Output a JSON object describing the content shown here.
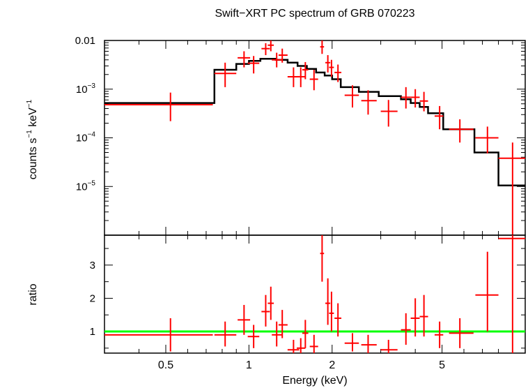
{
  "title": "Swift−XRT PC spectrum of GRB 070223",
  "colors": {
    "data": "#ff0000",
    "model": "#000000",
    "unity": "#00ff00",
    "axes": "#000000"
  },
  "chart_data": [
    {
      "type": "scatter",
      "panel": "spectrum",
      "title": "Swift−XRT PC spectrum of GRB 070223",
      "xlabel": "",
      "ylabel_main": "counts s",
      "ylabel_sup1": "−1",
      "ylabel_mid": " keV",
      "ylabel_sup2": "−1",
      "xscale": "log",
      "yscale": "log",
      "xlim": [
        0.3,
        10
      ],
      "ylim": [
        1e-06,
        0.01
      ],
      "ytick_labels": [
        {
          "value": 0.01,
          "base": "0.01",
          "exp": ""
        },
        {
          "value": 0.001,
          "base": "10",
          "exp": "−3"
        },
        {
          "value": 0.0001,
          "base": "10",
          "exp": "−4"
        },
        {
          "value": 1e-05,
          "base": "10",
          "exp": "−5"
        }
      ],
      "series": [
        {
          "kind": "data",
          "points": [
            {
              "x": 0.52,
              "xlo": 0.3,
              "xhi": 0.74,
              "y": 0.00048,
              "ylo": 0.00022,
              "yhi": 0.00085
            },
            {
              "x": 0.82,
              "xlo": 0.75,
              "xhi": 0.9,
              "y": 0.0021,
              "ylo": 0.0011,
              "yhi": 0.0035
            },
            {
              "x": 0.96,
              "xlo": 0.91,
              "xhi": 1.01,
              "y": 0.0044,
              "ylo": 0.0028,
              "yhi": 0.006
            },
            {
              "x": 1.04,
              "xlo": 0.99,
              "xhi": 1.09,
              "y": 0.0034,
              "ylo": 0.0021,
              "yhi": 0.0048
            },
            {
              "x": 1.15,
              "xlo": 1.11,
              "xhi": 1.19,
              "y": 0.0068,
              "ylo": 0.005,
              "yhi": 0.0088
            },
            {
              "x": 1.2,
              "xlo": 1.17,
              "xhi": 1.23,
              "y": 0.008,
              "ylo": 0.006,
              "yhi": 0.01
            },
            {
              "x": 1.26,
              "xlo": 1.21,
              "xhi": 1.32,
              "y": 0.004,
              "ylo": 0.0028,
              "yhi": 0.0056
            },
            {
              "x": 1.32,
              "xlo": 1.28,
              "xhi": 1.38,
              "y": 0.005,
              "ylo": 0.0035,
              "yhi": 0.0068
            },
            {
              "x": 1.45,
              "xlo": 1.38,
              "xhi": 1.52,
              "y": 0.0018,
              "ylo": 0.0011,
              "yhi": 0.0028
            },
            {
              "x": 1.54,
              "xlo": 1.49,
              "xhi": 1.6,
              "y": 0.0018,
              "ylo": 0.0011,
              "yhi": 0.0028
            },
            {
              "x": 1.6,
              "xlo": 1.56,
              "xhi": 1.64,
              "y": 0.0025,
              "ylo": 0.0016,
              "yhi": 0.0036
            },
            {
              "x": 1.72,
              "xlo": 1.66,
              "xhi": 1.78,
              "y": 0.0016,
              "ylo": 0.00095,
              "yhi": 0.0025
            },
            {
              "x": 1.84,
              "xlo": 1.81,
              "xhi": 1.87,
              "y": 0.0074,
              "ylo": 0.0053,
              "yhi": 0.01
            },
            {
              "x": 1.93,
              "xlo": 1.89,
              "xhi": 1.97,
              "y": 0.0035,
              "ylo": 0.0022,
              "yhi": 0.005
            },
            {
              "x": 1.99,
              "xlo": 1.95,
              "xhi": 2.03,
              "y": 0.0028,
              "ylo": 0.0018,
              "yhi": 0.004
            },
            {
              "x": 2.1,
              "xlo": 2.04,
              "xhi": 2.16,
              "y": 0.0022,
              "ylo": 0.0014,
              "yhi": 0.0032
            },
            {
              "x": 2.37,
              "xlo": 2.22,
              "xhi": 2.5,
              "y": 0.00075,
              "ylo": 0.00042,
              "yhi": 0.0012
            },
            {
              "x": 2.7,
              "xlo": 2.55,
              "xhi": 2.9,
              "y": 0.00058,
              "ylo": 0.0003,
              "yhi": 0.00095
            },
            {
              "x": 3.2,
              "xlo": 3.0,
              "xhi": 3.45,
              "y": 0.00035,
              "ylo": 0.00017,
              "yhi": 0.0006
            },
            {
              "x": 3.7,
              "xlo": 3.55,
              "xhi": 3.85,
              "y": 0.00068,
              "ylo": 0.0004,
              "yhi": 0.0011
            },
            {
              "x": 4.0,
              "xlo": 3.85,
              "xhi": 4.15,
              "y": 0.00068,
              "ylo": 0.00042,
              "yhi": 0.001
            },
            {
              "x": 4.3,
              "xlo": 4.15,
              "xhi": 4.45,
              "y": 0.00057,
              "ylo": 0.00035,
              "yhi": 0.00088
            },
            {
              "x": 4.9,
              "xlo": 4.7,
              "xhi": 5.05,
              "y": 0.00028,
              "ylo": 0.00015,
              "yhi": 0.00045
            },
            {
              "x": 5.8,
              "xlo": 5.3,
              "xhi": 6.5,
              "y": 0.00015,
              "ylo": 8e-05,
              "yhi": 0.00024
            },
            {
              "x": 7.3,
              "xlo": 6.6,
              "xhi": 8.0,
              "y": 0.0001,
              "ylo": 4.8e-05,
              "yhi": 0.00017
            },
            {
              "x": 9.0,
              "xlo": 8.0,
              "xhi": 10.0,
              "y": 3.8e-05,
              "ylo": 1e-06,
              "yhi": 8e-05
            }
          ]
        },
        {
          "kind": "model-step",
          "bins": [
            {
              "x0": 0.3,
              "x1": 0.75,
              "y": 0.00052
            },
            {
              "x0": 0.75,
              "x1": 0.9,
              "y": 0.0025
            },
            {
              "x0": 0.9,
              "x1": 1.0,
              "y": 0.0033
            },
            {
              "x0": 1.0,
              "x1": 1.1,
              "y": 0.0038
            },
            {
              "x0": 1.1,
              "x1": 1.25,
              "y": 0.0042
            },
            {
              "x0": 1.25,
              "x1": 1.38,
              "y": 0.004
            },
            {
              "x0": 1.38,
              "x1": 1.5,
              "y": 0.0035
            },
            {
              "x0": 1.5,
              "x1": 1.62,
              "y": 0.003
            },
            {
              "x0": 1.62,
              "x1": 1.75,
              "y": 0.0026
            },
            {
              "x0": 1.75,
              "x1": 1.88,
              "y": 0.0022
            },
            {
              "x0": 1.88,
              "x1": 2.0,
              "y": 0.0019
            },
            {
              "x0": 2.0,
              "x1": 2.15,
              "y": 0.0016
            },
            {
              "x0": 2.15,
              "x1": 2.5,
              "y": 0.0011
            },
            {
              "x0": 2.5,
              "x1": 2.95,
              "y": 0.00088
            },
            {
              "x0": 2.95,
              "x1": 3.55,
              "y": 0.00072
            },
            {
              "x0": 3.55,
              "x1": 3.85,
              "y": 0.00062
            },
            {
              "x0": 3.85,
              "x1": 4.15,
              "y": 0.00052
            },
            {
              "x0": 4.15,
              "x1": 4.45,
              "y": 0.00043
            },
            {
              "x0": 4.45,
              "x1": 5.05,
              "y": 0.00032
            },
            {
              "x0": 5.05,
              "x1": 6.55,
              "y": 0.00015
            },
            {
              "x0": 6.55,
              "x1": 8.0,
              "y": 5e-05
            },
            {
              "x0": 8.0,
              "x1": 10.0,
              "y": 1.05e-05
            }
          ]
        }
      ]
    },
    {
      "type": "scatter",
      "panel": "ratio",
      "xlabel": "Energy (keV)",
      "ylabel": "ratio",
      "xscale": "log",
      "yscale": "linear",
      "xlim": [
        0.3,
        10
      ],
      "ylim": [
        0.35,
        3.9
      ],
      "xtick_labels": [
        {
          "value": 0.5,
          "label": "0.5"
        },
        {
          "value": 1,
          "label": "1"
        },
        {
          "value": 2,
          "label": "2"
        },
        {
          "value": 5,
          "label": "5"
        }
      ],
      "ytick_labels": [
        {
          "value": 1,
          "label": "1"
        },
        {
          "value": 2,
          "label": "2"
        },
        {
          "value": 3,
          "label": "3"
        }
      ],
      "reference_line": 1,
      "points": [
        {
          "x": 0.52,
          "xlo": 0.3,
          "xhi": 0.74,
          "y": 0.9,
          "ylo": 0.4,
          "yhi": 1.4
        },
        {
          "x": 0.82,
          "xlo": 0.75,
          "xhi": 0.9,
          "y": 0.9,
          "ylo": 0.55,
          "yhi": 1.3
        },
        {
          "x": 0.96,
          "xlo": 0.91,
          "xhi": 1.01,
          "y": 1.35,
          "ylo": 0.9,
          "yhi": 1.8
        },
        {
          "x": 1.04,
          "xlo": 0.99,
          "xhi": 1.09,
          "y": 0.85,
          "ylo": 0.5,
          "yhi": 1.2
        },
        {
          "x": 1.15,
          "xlo": 1.11,
          "xhi": 1.19,
          "y": 1.6,
          "ylo": 1.15,
          "yhi": 2.1
        },
        {
          "x": 1.2,
          "xlo": 1.17,
          "xhi": 1.23,
          "y": 1.85,
          "ylo": 1.35,
          "yhi": 2.35
        },
        {
          "x": 1.26,
          "xlo": 1.21,
          "xhi": 1.32,
          "y": 0.9,
          "ylo": 0.55,
          "yhi": 1.3
        },
        {
          "x": 1.32,
          "xlo": 1.28,
          "xhi": 1.38,
          "y": 1.2,
          "ylo": 0.8,
          "yhi": 1.65
        },
        {
          "x": 1.45,
          "xlo": 1.38,
          "xhi": 1.52,
          "y": 0.45,
          "ylo": 0.35,
          "yhi": 0.75
        },
        {
          "x": 1.54,
          "xlo": 1.49,
          "xhi": 1.6,
          "y": 0.5,
          "ylo": 0.35,
          "yhi": 0.8
        },
        {
          "x": 1.6,
          "xlo": 1.56,
          "xhi": 1.64,
          "y": 0.95,
          "ylo": 0.5,
          "yhi": 1.35
        },
        {
          "x": 1.72,
          "xlo": 1.66,
          "xhi": 1.78,
          "y": 0.55,
          "ylo": 0.35,
          "yhi": 0.9
        },
        {
          "x": 1.84,
          "xlo": 1.81,
          "xhi": 1.87,
          "y": 3.35,
          "ylo": 2.5,
          "yhi": 3.9
        },
        {
          "x": 1.93,
          "xlo": 1.89,
          "xhi": 1.97,
          "y": 1.85,
          "ylo": 1.2,
          "yhi": 2.6
        },
        {
          "x": 1.99,
          "xlo": 1.95,
          "xhi": 2.03,
          "y": 1.55,
          "ylo": 1.0,
          "yhi": 2.2
        },
        {
          "x": 2.1,
          "xlo": 2.04,
          "xhi": 2.16,
          "y": 1.4,
          "ylo": 0.85,
          "yhi": 1.85
        },
        {
          "x": 2.37,
          "xlo": 2.22,
          "xhi": 2.5,
          "y": 0.65,
          "ylo": 0.4,
          "yhi": 0.95
        },
        {
          "x": 2.7,
          "xlo": 2.55,
          "xhi": 2.9,
          "y": 0.6,
          "ylo": 0.35,
          "yhi": 0.9
        },
        {
          "x": 3.2,
          "xlo": 3.0,
          "xhi": 3.45,
          "y": 0.45,
          "ylo": 0.35,
          "yhi": 0.75
        },
        {
          "x": 3.7,
          "xlo": 3.55,
          "xhi": 3.85,
          "y": 1.05,
          "ylo": 0.6,
          "yhi": 1.55
        },
        {
          "x": 4.0,
          "xlo": 3.85,
          "xhi": 4.15,
          "y": 1.4,
          "ylo": 0.85,
          "yhi": 2.0
        },
        {
          "x": 4.3,
          "xlo": 4.15,
          "xhi": 4.45,
          "y": 1.45,
          "ylo": 0.85,
          "yhi": 2.1
        },
        {
          "x": 4.9,
          "xlo": 4.7,
          "xhi": 5.05,
          "y": 0.9,
          "ylo": 0.5,
          "yhi": 1.3
        },
        {
          "x": 5.8,
          "xlo": 5.3,
          "xhi": 6.5,
          "y": 0.95,
          "ylo": 0.5,
          "yhi": 1.4
        },
        {
          "x": 7.3,
          "xlo": 6.6,
          "xhi": 8.0,
          "y": 2.1,
          "ylo": 1.0,
          "yhi": 3.4
        },
        {
          "x": 9.0,
          "xlo": 8.0,
          "xhi": 10.0,
          "y": 3.8,
          "ylo": 0.35,
          "yhi": 3.9
        }
      ]
    }
  ]
}
